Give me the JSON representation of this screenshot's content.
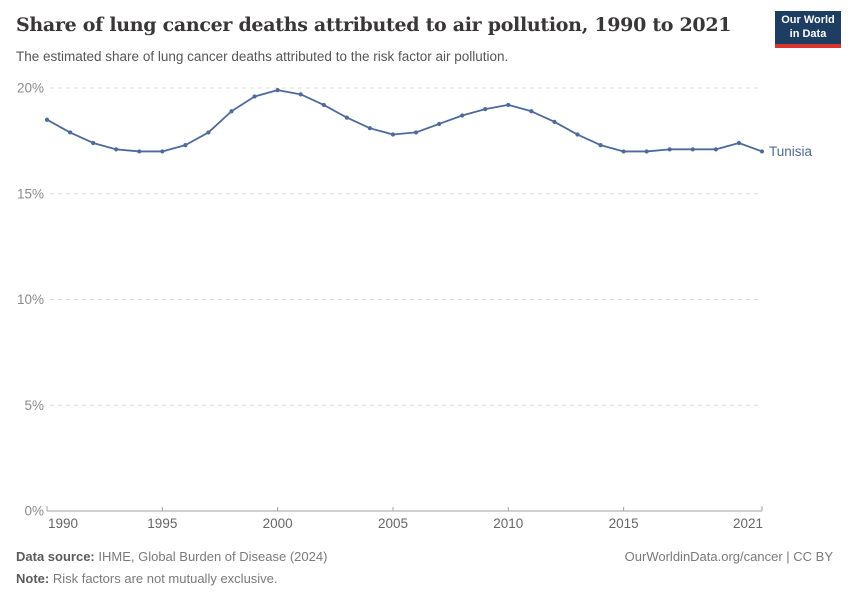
{
  "header": {
    "title": "Share of lung cancer deaths attributed to air pollution, 1990 to 2021",
    "subtitle": "The estimated share of lung cancer deaths attributed to the risk factor air pollution.",
    "logo": {
      "line1": "Our World",
      "line2": "in Data"
    }
  },
  "chart_data": {
    "type": "line",
    "title": "Share of lung cancer deaths attributed to air pollution, 1990 to 2021",
    "xlabel": "",
    "ylabel": "",
    "ylim": [
      0,
      20
    ],
    "yticks": [
      0,
      5,
      10,
      15,
      20
    ],
    "ytick_labels": [
      "0%",
      "5%",
      "10%",
      "15%",
      "20%"
    ],
    "xticks": [
      1990,
      1995,
      2000,
      2005,
      2010,
      2015,
      2021
    ],
    "grid": "horizontal-dashed",
    "legend_position": "end-of-line",
    "x": [
      1990,
      1991,
      1992,
      1993,
      1994,
      1995,
      1996,
      1997,
      1998,
      1999,
      2000,
      2001,
      2002,
      2003,
      2004,
      2005,
      2006,
      2007,
      2008,
      2009,
      2010,
      2011,
      2012,
      2013,
      2014,
      2015,
      2016,
      2017,
      2018,
      2019,
      2020,
      2021
    ],
    "series": [
      {
        "name": "Tunisia",
        "color": "#4C6A9C",
        "values": [
          18.5,
          17.9,
          17.4,
          17.1,
          17.0,
          17.0,
          17.3,
          17.9,
          18.9,
          19.6,
          19.9,
          19.7,
          19.2,
          18.6,
          18.1,
          17.8,
          17.9,
          18.3,
          18.7,
          19.0,
          19.2,
          18.9,
          18.4,
          17.8,
          17.3,
          17.0,
          17.0,
          17.1,
          17.1,
          17.1,
          17.4,
          17.0
        ]
      }
    ]
  },
  "footer": {
    "datasource_label": "Data source:",
    "datasource_value": " IHME, Global Burden of Disease (2024)",
    "note_label": "Note:",
    "note_value": " Risk factors are not mutually exclusive.",
    "attribution": "OurWorldinData.org/cancer | CC BY"
  },
  "colors": {
    "line": "#4C6A9C",
    "grid": "#dcdcdc",
    "axis": "#a1a1a1",
    "ytick_text": "#8a8a8a",
    "xtick_text": "#666666",
    "logo_bg": "#1d3d63",
    "logo_stripe": "#d8352f"
  }
}
